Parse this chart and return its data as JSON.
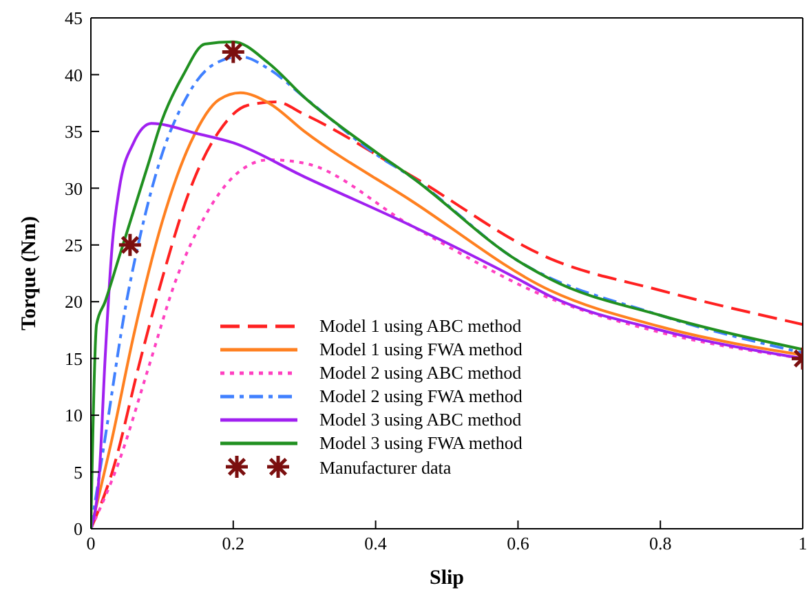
{
  "chart_data": {
    "type": "line",
    "xlabel": "Slip",
    "ylabel": "Torque (Nm)",
    "xlim": [
      0,
      1
    ],
    "ylim": [
      0,
      45
    ],
    "xticks": [
      0,
      0.2,
      0.4,
      0.6,
      0.8,
      1
    ],
    "yticks": [
      0,
      5,
      10,
      15,
      20,
      25,
      30,
      35,
      40,
      45
    ],
    "legend": "bottom",
    "marker": "none",
    "series": [
      {
        "name": "Model 1 using ABC method",
        "color": "#ff2020",
        "line_style": "dashed",
        "x": [
          0,
          0.03,
          0.07,
          0.1,
          0.14,
          0.18,
          0.22,
          0.26,
          0.3,
          0.45,
          0.645,
          0.8,
          1
        ],
        "values": [
          0,
          5,
          15,
          22,
          30,
          35,
          37.3,
          37.6,
          36.5,
          31.1,
          23.8,
          21,
          18
        ]
      },
      {
        "name": "Model 1 using FWA method",
        "color": "#ff8020",
        "line_style": "solid",
        "x": [
          0,
          0.03,
          0.06,
          0.1,
          0.14,
          0.18,
          0.21,
          0.25,
          0.3,
          0.45,
          0.645,
          0.8,
          1
        ],
        "values": [
          0,
          8,
          17,
          27,
          34,
          37.8,
          38.4,
          37.5,
          35,
          28.9,
          21,
          17.8,
          15.3
        ]
      },
      {
        "name": "Model 2 using ABC method",
        "color": "#ff40c0",
        "line_style": "dotted",
        "x": [
          0,
          0.04,
          0.08,
          0.12,
          0.16,
          0.2,
          0.25,
          0.3,
          0.45,
          0.645,
          0.8,
          1
        ],
        "values": [
          0,
          6,
          14,
          22,
          27.5,
          31,
          32.5,
          32.2,
          26.7,
          20.3,
          17.3,
          15
        ]
      },
      {
        "name": "Model 2 using FWA method",
        "color": "#4080ff",
        "line_style": "dashdot",
        "x": [
          0,
          0.02,
          0.05,
          0.07,
          0.1,
          0.13,
          0.17,
          0.21,
          0.25,
          0.3,
          0.4,
          0.45,
          0.6,
          0.8,
          1
        ],
        "values": [
          0,
          8,
          20,
          26,
          33,
          37.5,
          40.8,
          41.6,
          40.5,
          38,
          33,
          31,
          23.6,
          18.8,
          15.5
        ]
      },
      {
        "name": "Model 3 using ABC method",
        "color": "#a020f0",
        "line_style": "solid",
        "x": [
          0,
          0.012,
          0.02,
          0.03,
          0.04,
          0.06,
          0.085,
          0.15,
          0.2,
          0.3,
          0.45,
          0.6,
          0.645,
          0.8,
          1
        ],
        "values": [
          0,
          5,
          15,
          25,
          30,
          34,
          35.7,
          34.8,
          34,
          31,
          26.7,
          22,
          20.5,
          17.5,
          15
        ]
      },
      {
        "name": "Model 3 using FWA method",
        "color": "#209020",
        "line_style": "solid",
        "x": [
          0,
          0.008,
          0.02,
          0.04,
          0.06,
          0.08,
          0.1,
          0.13,
          0.16,
          0.2,
          0.25,
          0.3,
          0.4,
          0.45,
          0.6,
          0.645,
          0.8,
          1
        ],
        "values": [
          0,
          18,
          20,
          24,
          28,
          32,
          36,
          40,
          42.7,
          42.9,
          41,
          38,
          33.2,
          31,
          23.6,
          22,
          18.8,
          15.8
        ]
      },
      {
        "name": "Manufacturer data",
        "type": "scatter",
        "marker": "cross",
        "color": "#7b0f0f",
        "x": [
          0.055,
          0.2,
          1
        ],
        "values": [
          25,
          42,
          15
        ]
      }
    ]
  }
}
